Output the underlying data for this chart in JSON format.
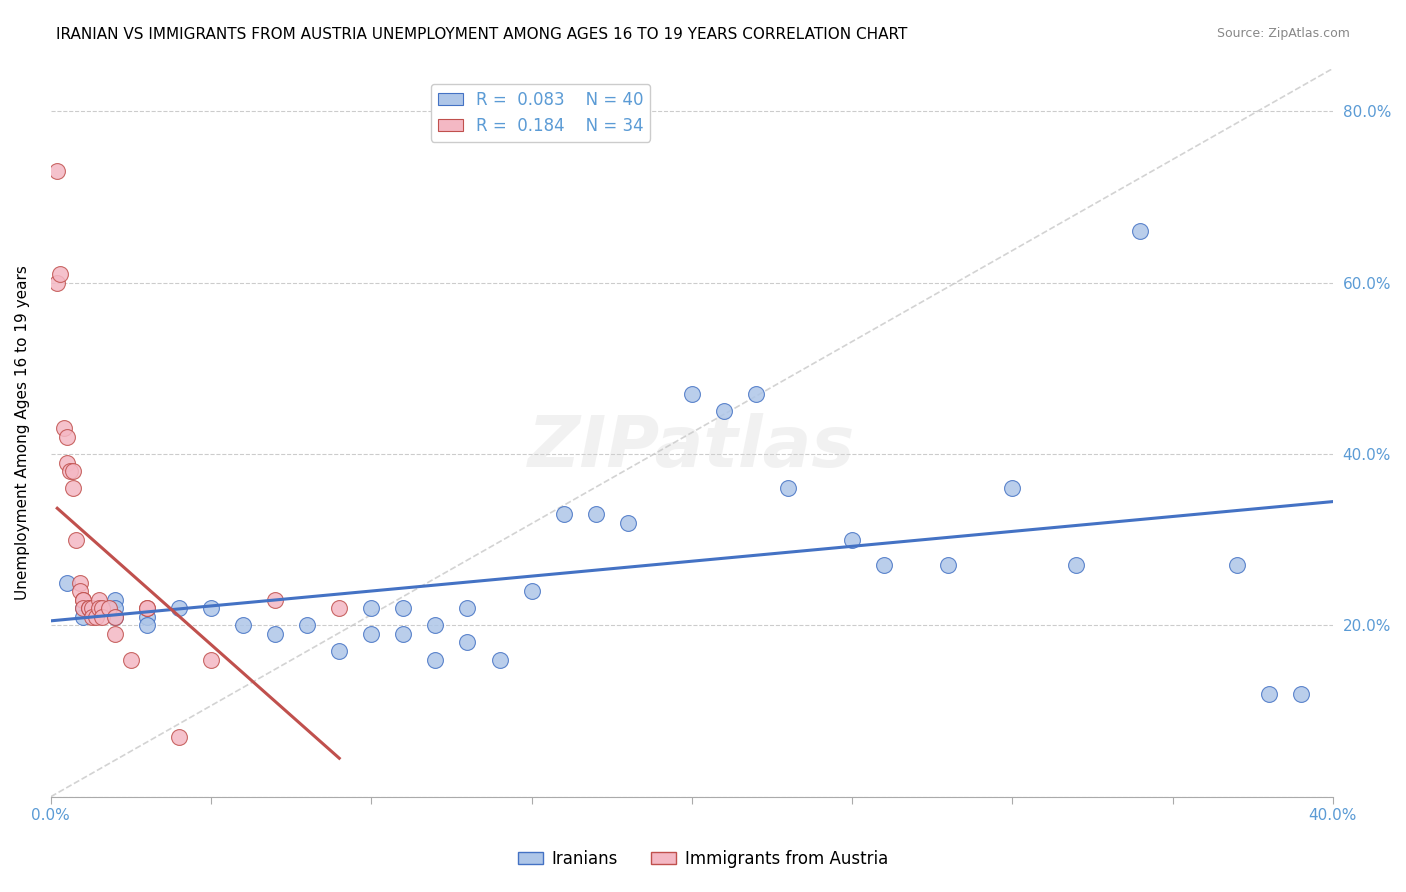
{
  "title": "IRANIAN VS IMMIGRANTS FROM AUSTRIA UNEMPLOYMENT AMONG AGES 16 TO 19 YEARS CORRELATION CHART",
  "source": "Source: ZipAtlas.com",
  "ylabel": "Unemployment Among Ages 16 to 19 years",
  "xlim": [
    0.0,
    0.4
  ],
  "ylim": [
    0.0,
    0.85
  ],
  "xticks": [
    0.0,
    0.05,
    0.1,
    0.15,
    0.2,
    0.25,
    0.3,
    0.35,
    0.4
  ],
  "yticks": [
    0.0,
    0.2,
    0.4,
    0.6,
    0.8
  ],
  "ytick_labels": [
    "",
    "20.0%",
    "40.0%",
    "60.0%",
    "80.0%"
  ],
  "legend_r_iranians": "0.083",
  "legend_n_iranians": "40",
  "legend_r_austria": "0.184",
  "legend_n_austria": "34",
  "iranians_color": "#aec6e8",
  "austria_color": "#f4b8c4",
  "trend_iranians_color": "#4472c4",
  "trend_austria_color": "#c0504d",
  "diagonal_color": "#c8c8c8",
  "iranians_x": [
    0.005,
    0.01,
    0.01,
    0.02,
    0.02,
    0.02,
    0.03,
    0.03,
    0.04,
    0.05,
    0.06,
    0.07,
    0.08,
    0.09,
    0.1,
    0.1,
    0.11,
    0.11,
    0.12,
    0.12,
    0.13,
    0.13,
    0.14,
    0.15,
    0.16,
    0.17,
    0.18,
    0.2,
    0.21,
    0.22,
    0.23,
    0.25,
    0.26,
    0.28,
    0.3,
    0.32,
    0.34,
    0.37,
    0.38,
    0.39
  ],
  "iranians_y": [
    0.25,
    0.22,
    0.21,
    0.23,
    0.22,
    0.21,
    0.21,
    0.2,
    0.22,
    0.22,
    0.2,
    0.19,
    0.2,
    0.17,
    0.22,
    0.19,
    0.22,
    0.19,
    0.2,
    0.16,
    0.22,
    0.18,
    0.16,
    0.24,
    0.33,
    0.33,
    0.32,
    0.47,
    0.45,
    0.47,
    0.36,
    0.3,
    0.27,
    0.27,
    0.36,
    0.27,
    0.66,
    0.27,
    0.12,
    0.12
  ],
  "austria_x": [
    0.002,
    0.002,
    0.003,
    0.004,
    0.005,
    0.005,
    0.006,
    0.007,
    0.007,
    0.008,
    0.009,
    0.009,
    0.01,
    0.01,
    0.01,
    0.012,
    0.012,
    0.013,
    0.013,
    0.014,
    0.015,
    0.015,
    0.016,
    0.016,
    0.018,
    0.02,
    0.02,
    0.025,
    0.03,
    0.03,
    0.04,
    0.05,
    0.07,
    0.09
  ],
  "austria_y": [
    0.73,
    0.6,
    0.61,
    0.43,
    0.42,
    0.39,
    0.38,
    0.38,
    0.36,
    0.3,
    0.25,
    0.24,
    0.23,
    0.23,
    0.22,
    0.22,
    0.22,
    0.22,
    0.21,
    0.21,
    0.23,
    0.22,
    0.22,
    0.21,
    0.22,
    0.21,
    0.19,
    0.16,
    0.22,
    0.22,
    0.07,
    0.16,
    0.23,
    0.22
  ]
}
